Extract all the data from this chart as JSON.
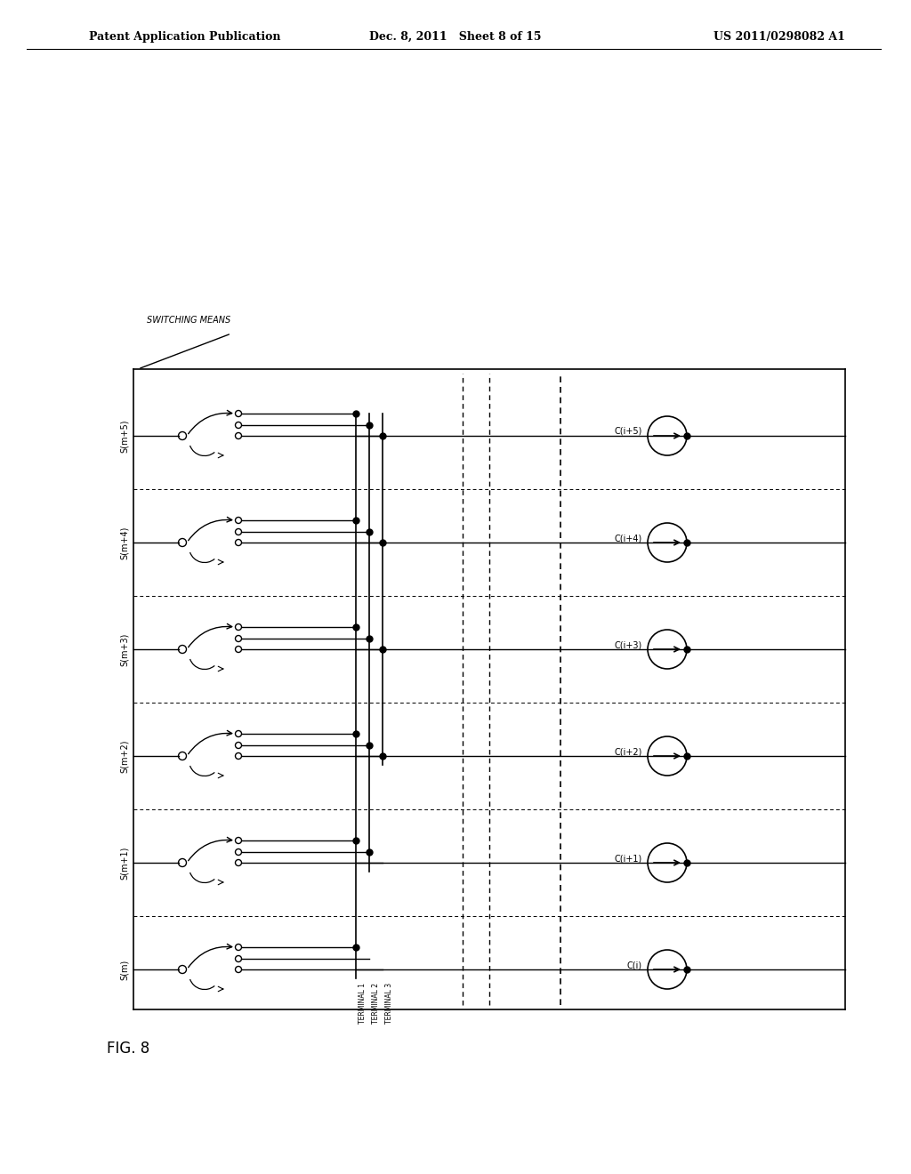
{
  "bg_color": "#ffffff",
  "header_left": "Patent Application Publication",
  "header_center": "Dec. 8, 2011   Sheet 8 of 15",
  "header_right": "US 2011/0298082 A1",
  "figure_label": "FIG. 8",
  "switching_means_label": "SWITCHING MEANS",
  "num_rows": 6,
  "row_labels": [
    "S(m)",
    "S(m+1)",
    "S(m+2)",
    "S(m+3)",
    "S(m+4)",
    "S(m+5)"
  ],
  "col_labels": [
    "C(i)",
    "C(i+1)",
    "C(i+2)",
    "C(i+3)",
    "C(i+4)",
    "C(i+5)"
  ],
  "terminal_labels": [
    "TERMINAL 1",
    "TERMINAL 2",
    "TERMINAL 3"
  ]
}
